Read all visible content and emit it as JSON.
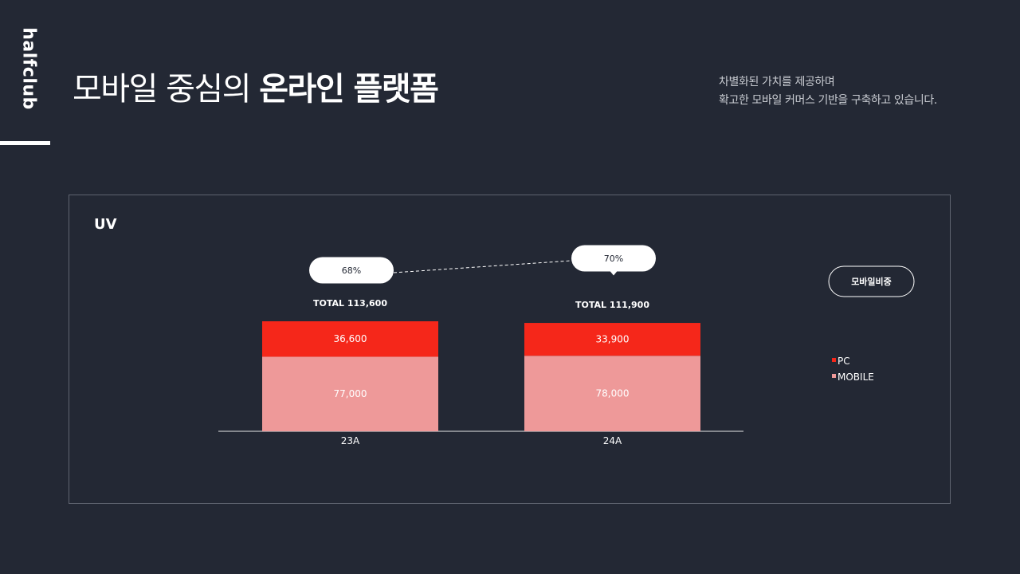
{
  "brand": {
    "logo_text": "halfclub"
  },
  "header": {
    "title_regular": "모바일 중심의 ",
    "title_bold": "온라인 플랫폼",
    "description": [
      "차별화된 가치를 제공하며",
      "확고한 모바일 커머스 기반을 구축하고 있습니다."
    ]
  },
  "colors": {
    "background": "#232834",
    "pc": "#f5271a",
    "mobile": "#ee9999",
    "text": "#ffffff"
  },
  "chart_data": {
    "type": "bar",
    "stacked": true,
    "title": "UV",
    "categories": [
      "23A",
      "24A"
    ],
    "series": [
      {
        "name": "MOBILE",
        "color": "#ee9999",
        "values": [
          77000,
          78000
        ],
        "labels": [
          "77,000",
          "78,000"
        ]
      },
      {
        "name": "PC",
        "color": "#f5271a",
        "values": [
          36600,
          33900
        ],
        "labels": [
          "36,600",
          "33,900"
        ]
      }
    ],
    "totals": [
      113600,
      111900
    ],
    "total_labels": [
      "TOTAL 113,600",
      "TOTAL 111,900"
    ],
    "line_series": {
      "name": "모바일비중",
      "values": [
        68,
        70
      ],
      "labels": [
        "68%",
        "70%"
      ]
    },
    "legend": [
      "PC",
      "MOBILE"
    ],
    "legend_position": "right",
    "ylim": [
      0,
      113600
    ],
    "grid": false
  }
}
